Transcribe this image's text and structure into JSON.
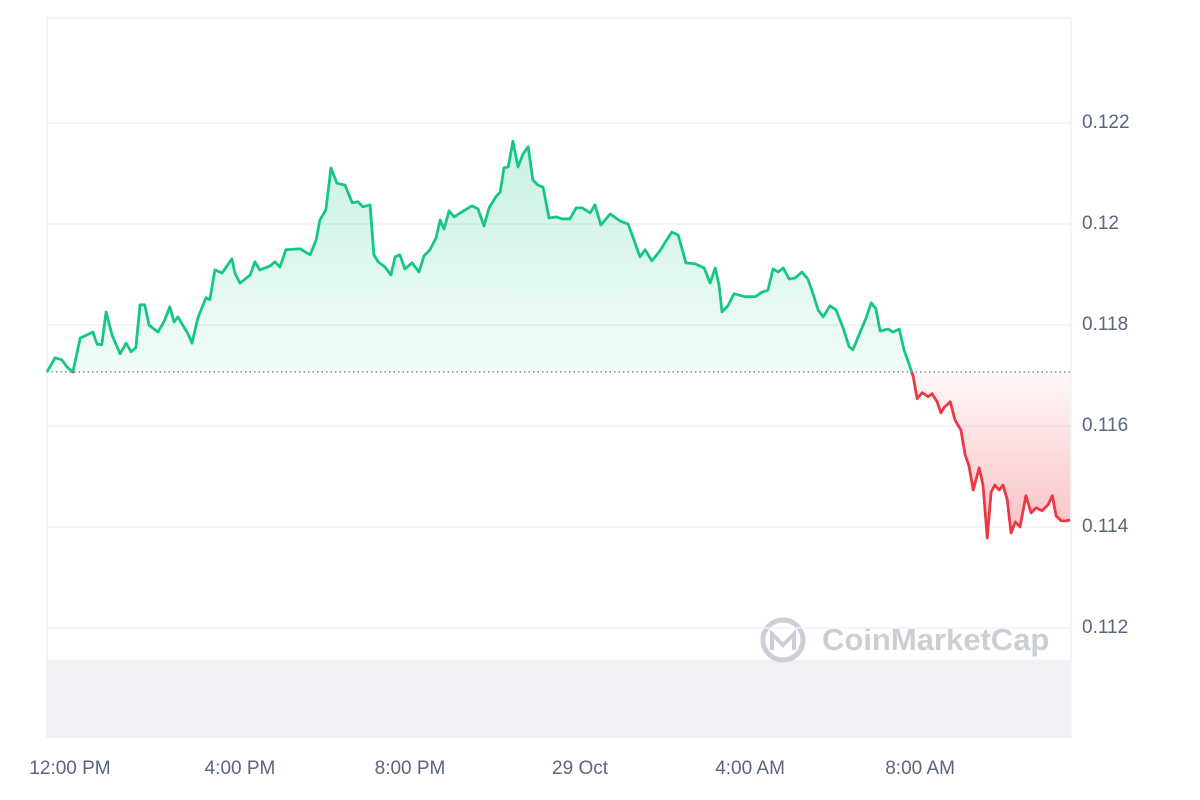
{
  "chart_data": {
    "type": "line",
    "x": [
      11.46,
      11.65,
      11.81,
      11.93,
      12.07,
      12.24,
      12.54,
      12.64,
      12.75,
      12.85,
      12.99,
      13.18,
      13.32,
      13.44,
      13.55,
      13.65,
      13.76,
      13.86,
      14.07,
      14.21,
      14.35,
      14.45,
      14.54,
      14.78,
      14.87,
      15.01,
      15.2,
      15.29,
      15.41,
      15.58,
      15.81,
      15.88,
      16.0,
      16.24,
      16.35,
      16.47,
      16.71,
      16.82,
      16.94,
      17.08,
      17.41,
      17.65,
      17.79,
      17.88,
      18.02,
      18.14,
      18.28,
      18.47,
      18.64,
      18.78,
      18.89,
      19.06,
      19.15,
      19.25,
      19.41,
      19.55,
      19.65,
      19.76,
      19.88,
      20.05,
      20.21,
      20.33,
      20.47,
      20.61,
      20.71,
      20.8,
      20.92,
      21.04,
      21.22,
      21.46,
      21.6,
      21.74,
      21.86,
      22.02,
      22.12,
      22.21,
      22.31,
      22.42,
      22.54,
      22.66,
      22.78,
      22.89,
      23.01,
      23.13,
      23.27,
      23.44,
      23.58,
      23.76,
      23.91,
      24.05,
      24.24,
      24.35,
      24.49,
      24.71,
      24.94,
      25.13,
      25.27,
      25.41,
      25.53,
      25.69,
      25.88,
      26.02,
      26.16,
      26.31,
      26.49,
      26.71,
      26.92,
      27.06,
      27.18,
      27.27,
      27.34,
      27.48,
      27.62,
      27.88,
      28.12,
      28.28,
      28.42,
      28.54,
      28.66,
      28.78,
      28.92,
      29.06,
      29.22,
      29.36,
      29.48,
      29.6,
      29.72,
      29.88,
      30.02,
      30.19,
      30.33,
      30.42,
      30.59,
      30.73,
      30.85,
      30.96,
      31.06,
      31.25,
      31.36,
      31.51,
      31.62,
      31.74,
      31.84,
      31.93,
      32.05,
      32.19,
      32.28,
      32.4,
      32.49,
      32.56,
      32.71,
      32.82,
      32.96,
      33.06,
      33.15,
      33.25,
      33.39,
      33.48,
      33.58,
      33.67,
      33.76,
      33.86,
      33.95,
      34.05,
      34.14,
      34.24,
      34.35,
      34.49,
      34.61,
      34.73,
      34.87,
      35.01,
      35.11,
      35.2,
      35.32,
      35.44,
      35.53
    ],
    "series": [
      {
        "color": "#16c784",
        "down_color": "#ea3943",
        "values": [
          0.11707,
          0.11735,
          0.11731,
          0.11717,
          0.11707,
          0.11774,
          0.11786,
          0.11762,
          0.11761,
          0.11826,
          0.1178,
          0.11743,
          0.11764,
          0.11747,
          0.11755,
          0.1184,
          0.1184,
          0.118,
          0.11786,
          0.11806,
          0.11836,
          0.11806,
          0.11816,
          0.11782,
          0.11764,
          0.11814,
          0.11854,
          0.1185,
          0.11909,
          0.11903,
          0.11931,
          0.11903,
          0.11883,
          0.11899,
          0.11925,
          0.11909,
          0.11917,
          0.11925,
          0.11915,
          0.11949,
          0.11951,
          0.11939,
          0.11968,
          0.12008,
          0.12028,
          0.12111,
          0.12081,
          0.12077,
          0.12042,
          0.12044,
          0.12034,
          0.12038,
          0.11939,
          0.11925,
          0.11915,
          0.11899,
          0.11935,
          0.11939,
          0.11911,
          0.11923,
          0.11905,
          0.11937,
          0.11949,
          0.11972,
          0.12008,
          0.1199,
          0.12026,
          0.12014,
          0.12024,
          0.12036,
          0.1203,
          0.11996,
          0.12032,
          0.12054,
          0.12063,
          0.12111,
          0.12113,
          0.12164,
          0.12113,
          0.12139,
          0.12153,
          0.12087,
          0.12077,
          0.12073,
          0.12012,
          0.12014,
          0.1201,
          0.1201,
          0.12032,
          0.12032,
          0.12022,
          0.12038,
          0.11998,
          0.1202,
          0.12006,
          0.12,
          0.11968,
          0.11935,
          0.11949,
          0.11927,
          0.11947,
          0.11966,
          0.11984,
          0.11978,
          0.11923,
          0.11921,
          0.11913,
          0.11883,
          0.11913,
          0.11879,
          0.11826,
          0.11838,
          0.11862,
          0.11856,
          0.11856,
          0.11865,
          0.11869,
          0.11911,
          0.11905,
          0.11913,
          0.11891,
          0.11893,
          0.11905,
          0.11891,
          0.11862,
          0.1183,
          0.11816,
          0.11838,
          0.1183,
          0.11794,
          0.11757,
          0.11751,
          0.11786,
          0.11814,
          0.11844,
          0.11832,
          0.11788,
          0.11792,
          0.11786,
          0.11792,
          0.11751,
          0.11723,
          0.11697,
          0.11654,
          0.11666,
          0.11658,
          0.11664,
          0.11648,
          0.11626,
          0.11636,
          0.11648,
          0.11612,
          0.11592,
          0.11543,
          0.11521,
          0.11473,
          0.11517,
          0.11483,
          0.11378,
          0.11469,
          0.11483,
          0.11473,
          0.11483,
          0.11454,
          0.11388,
          0.1141,
          0.114,
          0.11462,
          0.11428,
          0.11438,
          0.11432,
          0.11444,
          0.11462,
          0.11422,
          0.11412,
          0.11412,
          0.11414
        ]
      }
    ],
    "reference_value": 0.11707,
    "xlim": [
      11.46,
      35.55
    ],
    "xticks": [
      {
        "value": 12,
        "label": "12:00 PM"
      },
      {
        "value": 16,
        "label": "4:00 PM"
      },
      {
        "value": 20,
        "label": "8:00 PM"
      },
      {
        "value": 24,
        "label": "29 Oct"
      },
      {
        "value": 28,
        "label": "4:00 AM"
      },
      {
        "value": 32,
        "label": "8:00 AM"
      }
    ],
    "ylim": [
      0.10984,
      0.12408
    ],
    "yticks": [
      0.112,
      0.114,
      0.116,
      0.118,
      0.12,
      0.122
    ],
    "grid": true,
    "watermark": "CoinMarketCap"
  }
}
